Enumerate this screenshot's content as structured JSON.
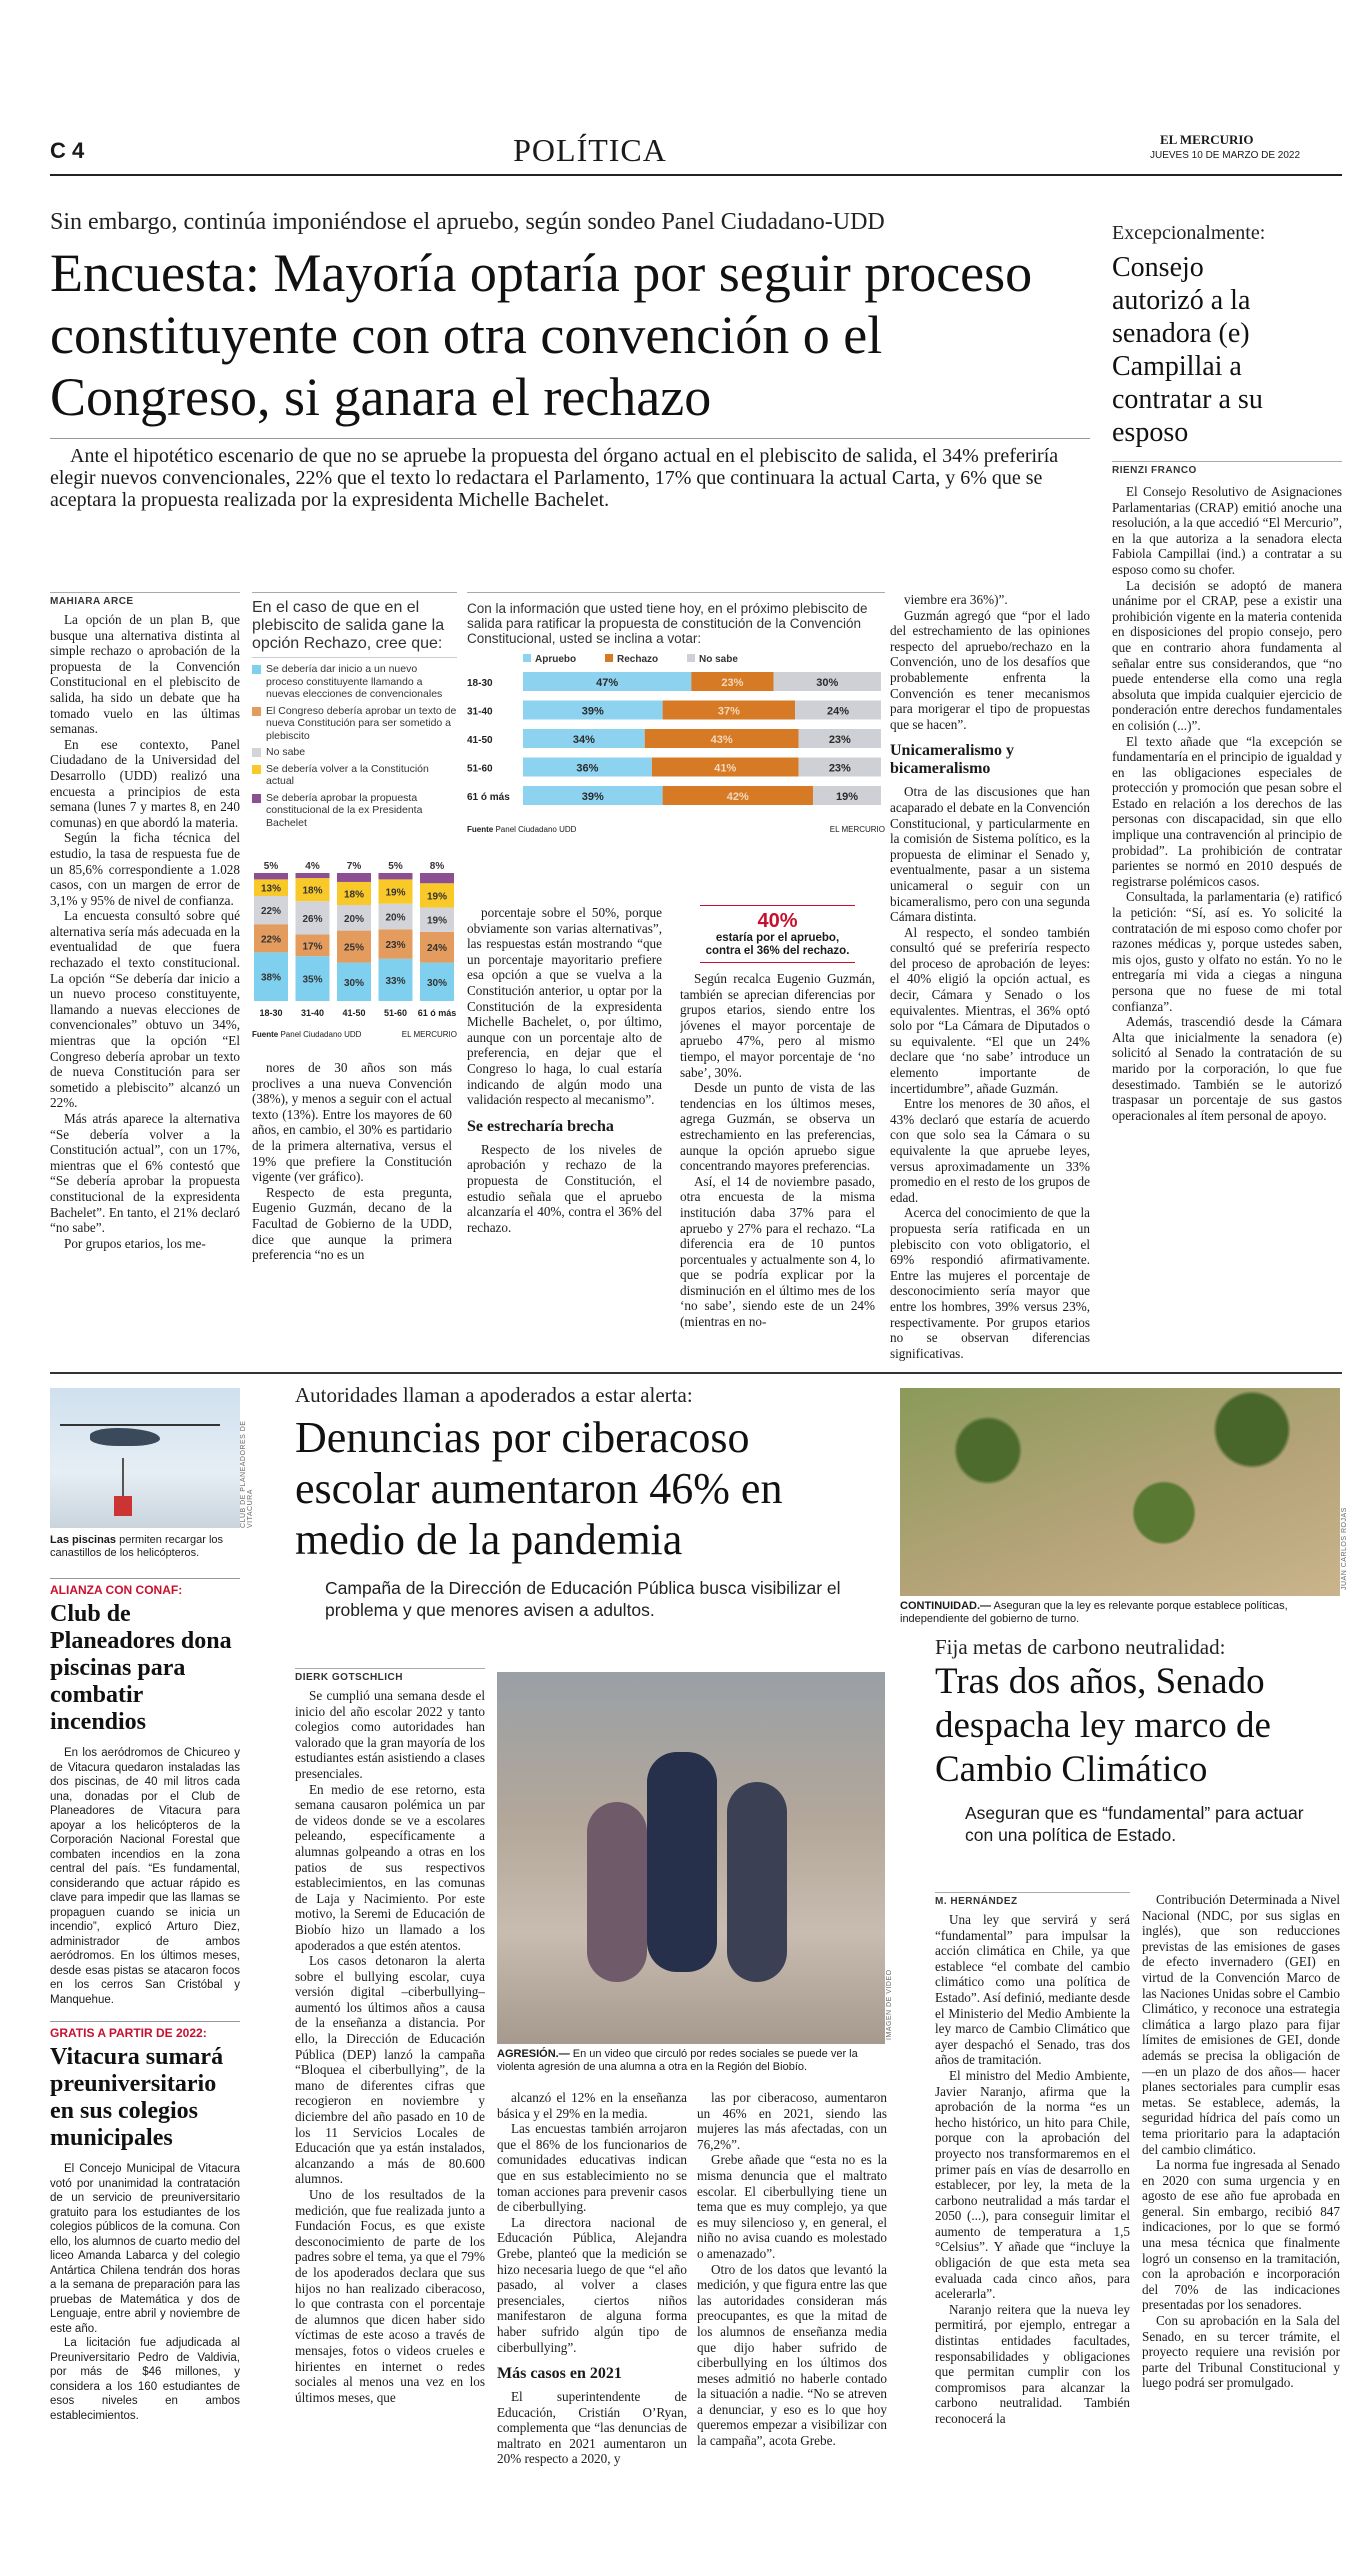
{
  "header": {
    "page": "C 4",
    "section": "POLÍTICA",
    "masthead": "EL MERCURIO",
    "date": "JUEVES 10 DE MARZO DE 2022"
  },
  "main": {
    "kicker": "Sin embargo, continúa imponiéndose el apruebo, según sondeo Panel Ciudadano-UDD",
    "headline": "Encuesta: Mayoría optaría por seguir proceso constituyente con otra convención o el Congreso, si ganara el rechazo",
    "deck": "Ante el hipotético escenario de que no se apruebe la propuesta del órgano actual en el plebiscito de salida, el 34% preferiría elegir nuevos convencionales, 22% que el texto lo redactara el Parlamento, 17% que continuara la actual Carta, y 6% que se aceptara la propuesta realizada por la expresidenta Michelle Bachelet.",
    "byline": "MAHIARA ARCE",
    "col1": [
      "La opción de un plan B, que busque una alternativa distinta al simple rechazo o aprobación de la propuesta de la Convención Constitucional en el plebiscito de salida, ha sido un debate que ha tomado vuelo en las últimas semanas.",
      "En ese contexto, Panel Ciudadano de la Universidad del Desarrollo (UDD) realizó una encuesta a principios de esta semana (lunes 7 y martes 8, en 240 comunas) en que abordó la materia.",
      "Según la ficha técnica del estudio, la tasa de respuesta fue de un 85,6% correspondiente a 1.028 casos, con un margen de error de 3,1% y 95% de nivel de confianza.",
      "La encuesta consultó sobre qué alternativa sería más adecuada en la eventualidad de que fuera rechazado el texto constitucional. La opción “Se debería dar inicio a un nuevo proceso constituyente, llamando a nuevas elecciones de convencionales” obtuvo un 34%, mientras que la opción “El Congreso debería aprobar un texto de nueva Constitución para ser sometido a plebiscito” alcanzó un 22%.",
      "Más atrás aparece la alternativa “Se debería volver a la Constitución actual”, con un 17%, mientras que el 6% contestó que “Se debería aprobar la propuesta constitucional de la expresidenta Bachelet”. En tanto, el 21% declaró “no sabe”.",
      "Por grupos etarios, los me-"
    ],
    "col2": [
      "nores de 30 años son más proclives a una nueva Convención (38%), y menos a seguir con el actual texto (13%). Entre los mayores de 60 años, en cambio, el 30% es partidario de la primera alternativa, versus el 19% que prefiere la Constitución vigente (ver gráfico).",
      "Respecto de esta pregunta, Eugenio Guzmán, decano de la Facultad de Gobierno de la UDD, dice que aunque la primera preferencia “no es un"
    ],
    "col3": [
      "porcentaje sobre el 50%, porque obviamente son varias alternativas”, las respuestas están mostrando “que un porcentaje mayoritario prefiere esa opción a que se vuelva a la Constitución anterior, u optar por la Constitución de la expresidenta Michelle Bachelet, o, por último, aunque con un porcentaje alto de preferencia, en dejar que el Congreso lo haga, lo cual estaría indicando de algún modo una validación respecto al mecanismo”.",
      {
        "h": "Se estrecharía brecha"
      },
      "Respecto de los niveles de aprobación y rechazo de la propuesta de Constitución, el estudio señala que el apruebo alcanzaría el 40%, contra el 36% del rechazo."
    ],
    "pullquote": {
      "number": "40%",
      "text": "estaría por el apruebo, contra el 36% del rechazo."
    },
    "col4": [
      "Según recalca Eugenio Guzmán, también se aprecian diferencias por grupos etarios, siendo entre los jóvenes el mayor porcentaje de apruebo 47%, pero al mismo tiempo, el mayor porcentaje de ‘no sabe’, 30%.",
      "Desde un punto de vista de las tendencias en los últimos meses, agrega Guzmán, se observa un estrechamiento en las preferencias, aunque la opción apruebo sigue concentrando mayores preferencias.",
      "Así, el 14 de noviembre pasado, otra encuesta de la misma institución daba 37% para el apruebo y 27% para el rechazo. “La diferencia era de 10 puntos porcentuales y actualmente son 4, lo que se podría explicar por la disminución en el último mes de los ‘no sabe’, siendo este de un 24% (mientras en no-"
    ],
    "col5": [
      "viembre era 36%)”.",
      "Guzmán agregó que “por el lado del estrechamiento de las opiniones respecto del apruebo/rechazo en la Convención, uno de los desafíos que probablemente enfrenta la Convención es tener mecanismos para morigerar el tipo de propuestas que se hacen”.",
      {
        "h": "Unicameralismo y bicameralismo"
      },
      "Otra de las discusiones que han acaparado el debate en la Convención Constitucional, y particularmente en la comisión de Sistema político, es la propuesta de eliminar el Senado y, eventualmente, pasar a un sistema unicameral o seguir con un bicameralismo, pero con una segunda Cámara distinta.",
      "Al respecto, el sondeo también consultó qué se preferiría respecto del proceso de aprobación de leyes: el 40% eligió la opción actual, es decir, Cámara y Senado o los equivalentes. Mientras, el 36% optó solo por “La Cámara de Diputados o su equivalente. “El que un 24% declare que ‘no sabe’ introduce un elemento importante de incertidumbre”, añade Guzmán.",
      "Entre los menores de 30 años, el 43% declaró que estaría de acuerdo con que solo sea la Cámara o su equivalente la que apruebe leyes, versus aproximadamente un 33% promedio en el resto de los grupos de edad.",
      "Acerca del conocimiento de que la propuesta sería ratificada en un plebiscito con voto obligatorio, el 69% respondió afirmativamente. Entre las mujeres el porcentaje de desconocimiento sería mayor que entre los hombres, 39% versus 23%, respectivamente. Por grupos etarios no se observan diferencias significativas."
    ]
  },
  "chart_data": [
    {
      "type": "bar",
      "stacked": true,
      "title": "En el caso de que en el plebiscito de salida gane la opción Rechazo, cree que:",
      "categories": [
        "18-30",
        "31-40",
        "41-50",
        "51-60",
        "61 ó más"
      ],
      "series": [
        {
          "name": "Se debería dar inicio a un nuevo proceso constituyente llamando a nuevas elecciones de convencionales",
          "color": "#7fcfee",
          "values": [
            38,
            35,
            30,
            33,
            30
          ]
        },
        {
          "name": "El Congreso debería aprobar un texto de nueva Constitución para ser sometido a plebiscito",
          "color": "#e49b5e",
          "values": [
            22,
            17,
            25,
            23,
            24
          ]
        },
        {
          "name": "No sabe",
          "color": "#d3d4d9",
          "values": [
            22,
            26,
            20,
            20,
            19
          ]
        },
        {
          "name": "Se debería volver a la Constitución actual",
          "color": "#f8c928",
          "values": [
            13,
            18,
            18,
            19,
            19
          ]
        },
        {
          "name": "Se debería aprobar la propuesta constitucional de la ex Presidenta Bachelet",
          "color": "#8c4f92",
          "values": [
            5,
            4,
            7,
            5,
            8
          ]
        }
      ],
      "source_label": "Fuente",
      "source": "Panel Ciudadano UDD",
      "credit": "EL MERCURIO"
    },
    {
      "type": "bar",
      "stacked": true,
      "orientation": "horizontal",
      "title": "Con la información que usted tiene hoy, en el próximo plebiscito de salida para ratificar la propuesta de constitución de la Convención Constitucional, usted se inclina a votar:",
      "categories": [
        "18-30",
        "31-40",
        "41-50",
        "51-60",
        "61 ó más"
      ],
      "series": [
        {
          "name": "Apruebo",
          "color": "#8dd3f0",
          "values": [
            47,
            39,
            34,
            36,
            39
          ]
        },
        {
          "name": "Rechazo",
          "color": "#d67a25",
          "values": [
            23,
            37,
            43,
            41,
            42
          ]
        },
        {
          "name": "No sabe",
          "color": "#cfd0d6",
          "values": [
            30,
            24,
            23,
            23,
            19
          ]
        }
      ],
      "legend": "top",
      "source_label": "Fuente",
      "source": "Panel Ciudadano UDD",
      "credit": "EL MERCURIO"
    }
  ],
  "side": {
    "kicker": "Excepcionalmente:",
    "headline": "Consejo autorizó a la senadora (e) Campillai a contratar a su esposo",
    "byline": "RIENZI FRANCO",
    "body": [
      "El Consejo Resolutivo de Asignaciones Parlamentarias (CRAP) emitió anoche una resolución, a la que accedió “El Mercurio”, en la que autoriza a la senadora electa Fabiola Campillai (ind.) a contratar a su esposo como su chofer.",
      "La decisión se adoptó de manera unánime por el CRAP, pese a existir una prohibición vigente en la materia contenida en disposiciones del propio consejo, pero que en contrario ahora fundamenta al señalar entre sus considerandos, que “no puede entenderse ella como una regla absoluta que impida cualquier ejercicio de ponderación entre derechos fundamentales en colisión (...)”.",
      "El texto añade que “la excepción se fundamentaría en el principio de igualdad y en las obligaciones especiales de protección y promoción que pesan sobre el Estado en relación a los derechos de las personas con discapacidad, sin que ello implique una contravención al principio de probidad”. La prohibición de contratar parientes se normó en 2010 después de registrarse polémicos casos.",
      "Consultada, la parlamentaria (e) ratificó la petición: “Sí, así es. Yo solicité la contratación de mi esposo como chofer por razones médicas y, porque ustedes saben, mis ojos, gusto y olfato no están. Yo no le entregaría mi vida a ciegas a ninguna persona que no fuese de mi total confianza”.",
      "Además, trascendió desde la Cámara Alta que inicialmente la senadora (e) solicitó al Senado la contratación de su marido por la corporación, lo que fue desestimado. También se le autorizó traspasar un porcentaje de sus gastos operacionales al ítem personal de apoyo."
    ]
  },
  "briefs": {
    "photo_credit": "CLUB DE PLANEADORES DE VITACURA",
    "caption_bold": "Las piscinas",
    "caption": " permiten recargar los canastillos de los helicópteros.",
    "b1": {
      "kicker": "ALIANZA CON CONAF:",
      "headline": "Club de Planeadores dona piscinas para combatir incendios",
      "body": [
        "En los aeródromos de Chicureo y de Vitacura quedaron instaladas las dos piscinas, de 40 mil litros cada una, donadas por el Club de Planeadores de Vitacura para apoyar a los helicópteros de la Corporación Nacional Forestal que combaten incendios en la zona central del país. “Es fundamental, considerando que actuar rápido es clave para impedir que las llamas se propaguen cuando se inicia un incendio”, explicó Arturo Diez, administrador de ambos aeródromos. En los últimos meses, desde esas pistas se atacaron focos en los cerros San Cristóbal y Manquehue."
      ]
    },
    "b2": {
      "kicker": "GRATIS A PARTIR DE 2022:",
      "headline": "Vitacura sumará preuniversitario en sus colegios municipales",
      "body": [
        "El Concejo Municipal de Vitacura votó por unanimidad la contratación de un servicio de preuniversitario gratuito para los estudiantes de los colegios públicos de la comuna. Con ello, los alumnos de cuarto medio del liceo Amanda Labarca y del colegio Antártica Chilena tendrán dos horas a la semana de preparación para las pruebas de Matemática y dos de Lenguaje, entre abril y noviembre de este año.",
        "La licitación fue adjudicada al Preuniversitario Pedro de Valdivia, por más de $46 millones, y considera a los 160 estudiantes de esos niveles en ambos establecimientos."
      ]
    }
  },
  "cyber": {
    "kicker": "Autoridades llaman a apoderados a estar alerta:",
    "headline": "Denuncias por ciberacoso escolar aumentaron 46% en medio de la pandemia",
    "deck": "Campaña de la Dirección de Educación Pública busca visibilizar el problema y que menores avisen a adultos.",
    "byline": "DIERK GOTSCHLICH",
    "photo_credit": "IMAGEN DE VIDEO",
    "caption_bold": "AGRESIÓN.—",
    "caption": " En un video que circuló por redes sociales se puede ver la violenta agresión de una alumna a otra en la Región del Biobío.",
    "col1": [
      "Se cumplió una semana desde el inicio del año escolar 2022 y tanto colegios como autoridades han valorado que la gran mayoría de los estudiantes están asistiendo a clases presenciales.",
      "En medio de ese retorno, esta semana causaron polémica un par de videos donde se ve a escolares peleando, específicamente a alumnas golpeando a otras en los patios de sus respectivos establecimientos, en las comunas de Laja y Nacimiento. Por este motivo, la Seremi de Educación de Biobío hizo un llamado a los apoderados a que estén atentos.",
      "Los casos detonaron la alerta sobre el bullying escolar, cuya versión digital –ciberbullying– aumentó los últimos años a causa de la enseñanza a distancia. Por ello, la Dirección de Educación Pública (DEP) lanzó la campaña “Bloquea el ciberbullying”, de la mano de diferentes cifras que recogieron en noviembre y diciembre del año pasado en 10 de los 11 Servicios Locales de Educación que ya están instalados, alcanzando a más de 80.600 alumnos.",
      "Uno de los resultados de la medición, que fue realizada junto a Fundación Focus, es que existe desconocimiento de parte de los padres sobre el tema, ya que el 79% de los apoderados declara que sus hijos no han realizado ciberacoso, lo que contrasta con el porcentaje de alumnos que dicen haber sido víctimas de este acoso a través de mensajes, fotos o videos crueles e hirientes en internet o redes sociales al menos una vez en los últimos meses, que"
    ],
    "col2": [
      "alcanzó el 12% en la enseñanza básica y el 29% en la media.",
      "Las encuestas también arrojaron que el 86% de los funcionarios de comunidades educativas indican que en sus establecimiento no se toman acciones para prevenir casos de ciberbullying.",
      "La directora nacional de Educación Pública, Alejandra Grebe, planteó que la medición se hizo necesaria luego de que “el año pasado, al volver a clases presenciales, ciertos niños manifestaron de alguna forma haber sufrido algún tipo de ciberbullying”.",
      {
        "h": "Más casos en 2021"
      },
      "El superintendente de Educación, Cristián O’Ryan, complementa que “las denuncias de maltrato en 2021 aumentaron un 20% respecto a 2020, y"
    ],
    "col3": [
      "las por ciberacoso, aumentaron un 46% en 2021, siendo las mujeres las más afectadas, con un 76,2%”.",
      "Grebe añade que “esta no es la misma denuncia que el maltrato escolar. El ciberbullying tiene un tema que es muy complejo, ya que es muy silencioso y, en general, el niño no avisa cuando es molestado o amenazado”.",
      "Otro de los datos que levantó la medición, y que figura entre las que las autoridades consideran más preocupantes, es que la mitad de los alumnos de enseñanza media que dijo haber sufrido de ciberbullying en los últimos dos meses admitió no haberle contado la situación a nadie. “No se atreven a denunciar, y eso es lo que hoy queremos empezar a visibilizar con la campaña”, acota Grebe."
    ]
  },
  "climate": {
    "photo_credit": "JUAN CARLOS ROJAS",
    "caption_bold": "CONTINUIDAD.—",
    "caption": " Aseguran que la ley es relevante porque establece políticas, independiente del gobierno de turno.",
    "kicker": "Fija metas de carbono neutralidad:",
    "headline": "Tras dos años, Senado despacha ley marco de Cambio Climático",
    "deck": "Aseguran que es “fundamental” para actuar con una política de Estado.",
    "byline": "M. HERNÁNDEZ",
    "col1": [
      "Una ley que servirá y será “fundamental” para impulsar la acción climática en Chile, ya que establece “el combate del cambio climático como una política de Estado”. Así definió, mediante desde el Ministerio del Medio Ambiente la ley marco de Cambio Climático que ayer despachó el Senado, tras dos años de tramitación.",
      "El ministro del Medio Ambiente, Javier Naranjo, afirma que la aprobación de la norma “es un hecho histórico, un hito para Chile, porque con la aprobación del proyecto nos transformaremos en el primer país en vías de desarrollo en establecer, por ley, la meta de la carbono neutralidad a más tardar el 2050 (...), para conseguir limitar el aumento de temperatura a 1,5 °Celsius”. Y añade que “incluye la obligación de que esta meta sea evaluada cada cinco años, para acelerarla”.",
      "Naranjo reitera que la nueva ley permitirá, por ejemplo, entregar a distintas entidades facultades, responsabilidades y obligaciones que permitan cumplir con los compromisos para alcanzar la carbono neutralidad. También reconocerá la"
    ],
    "col2": [
      "Contribución Determinada a Nivel Nacional (NDC, por sus siglas en inglés), que son reducciones previstas de las emisiones de gases de efecto invernadero (GEI) en virtud de la Convención Marco de las Naciones Unidas sobre el Cambio Climático, y reconoce una estrategia climática a largo plazo para fijar límites de emisiones de GEI, donde además se precisa la obligación de —en un plazo de dos años— hacer planes sectoriales para cumplir esas metas. Se establece, además, la seguridad hídrica del país como un tema prioritario para la adaptación del cambio climático.",
      "La norma fue ingresada al Senado en 2020 con suma urgencia y en agosto de ese año fue aprobada en general. Sin embargo, recibió 847 indicaciones, por lo que se formó una mesa técnica que finalmente logró un consenso en la tramitación, con la aprobación e incorporación del 70% de las indicaciones presentadas por los senadores.",
      "Con su aprobación en la Sala del Senado, en su tercer trámite, el proyecto requiere una revisión por parte del Tribunal Constitucional y luego podrá ser promulgado."
    ]
  }
}
